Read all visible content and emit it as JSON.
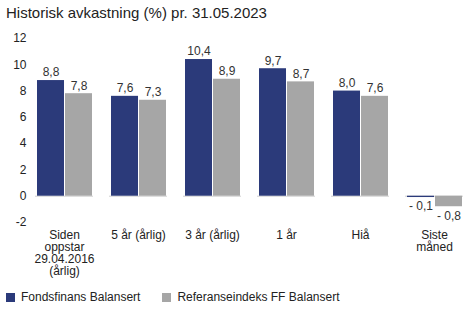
{
  "chart_data": {
    "type": "bar",
    "title": "Historisk avkastning (%) pr. 31.05.2023",
    "categories": [
      "Siden\noppstar\n29.04.2016\n(årlig)",
      "5 år (årlig)",
      "3 år (årlig)",
      "1 år",
      "Hiå",
      "Siste\nmåned"
    ],
    "series": [
      {
        "name": "Fondsfinans Balansert",
        "color": "#2b3a7a",
        "values": [
          8.8,
          7.6,
          10.4,
          9.7,
          8.0,
          -0.1
        ],
        "value_labels": [
          "8,8",
          "7,6",
          "10,4",
          "9,7",
          "8,0",
          "- 0,1"
        ]
      },
      {
        "name": "Referanseindeks FF Balansert",
        "color": "#a6a6a6",
        "values": [
          7.8,
          7.3,
          8.9,
          8.7,
          7.6,
          -0.8
        ],
        "value_labels": [
          "7,8",
          "7,3",
          "8,9",
          "8,7",
          "7,6",
          "- 0,8"
        ]
      }
    ],
    "ylim": [
      -2,
      12
    ],
    "yticks": [
      -2,
      0,
      2,
      4,
      6,
      8,
      10,
      12
    ],
    "grid": false,
    "data_labels": true,
    "legend": "bottom"
  }
}
